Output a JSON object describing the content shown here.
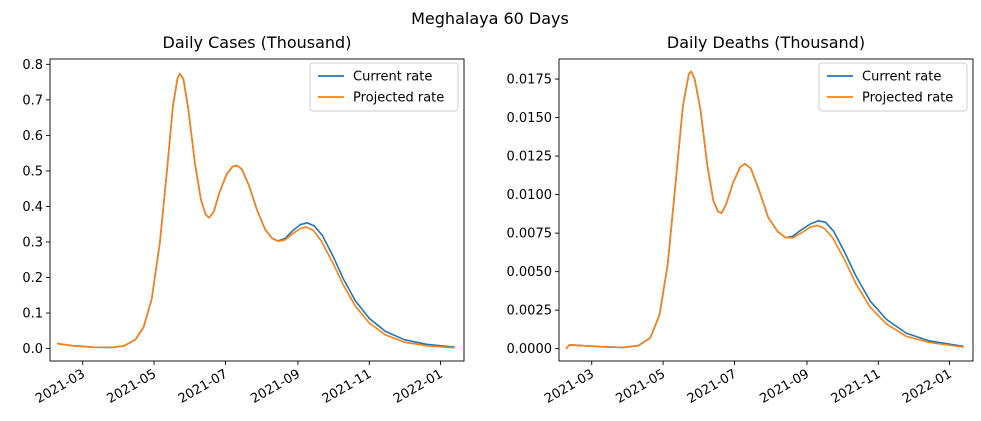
{
  "figure": {
    "suptitle": "Meghalaya 60 Days"
  },
  "colors": {
    "current": "#1f77b4",
    "projected": "#ff7f0e"
  },
  "chart_data": [
    {
      "type": "line",
      "title": "Daily Cases (Thousand)",
      "xlabel": "",
      "ylabel": "",
      "x_range": [
        "2021-02-01",
        "2022-01-21"
      ],
      "ylim": [
        -0.035,
        0.815
      ],
      "y_ticks": [
        0.0,
        0.1,
        0.2,
        0.3,
        0.4,
        0.5,
        0.6,
        0.7,
        0.8
      ],
      "y_tick_labels": [
        "0.0",
        "0.1",
        "0.2",
        "0.3",
        "0.4",
        "0.5",
        "0.6",
        "0.7",
        "0.8"
      ],
      "x_ticks": [
        "2021-03-01",
        "2021-05-01",
        "2021-07-01",
        "2021-09-01",
        "2021-11-01",
        "2022-01-01"
      ],
      "x_tick_labels": [
        "2021-03",
        "2021-05",
        "2021-07",
        "2021-09",
        "2021-11",
        "2022-01"
      ],
      "grid": false,
      "legend": "top-right",
      "series": [
        {
          "name": "Current rate",
          "points": [
            [
              "2021-02-07",
              0.014
            ],
            [
              "2021-02-20",
              0.008
            ],
            [
              "2021-03-10",
              0.004
            ],
            [
              "2021-03-25",
              0.003
            ],
            [
              "2021-04-05",
              0.007
            ],
            [
              "2021-04-15",
              0.025
            ],
            [
              "2021-04-22",
              0.06
            ],
            [
              "2021-04-29",
              0.14
            ],
            [
              "2021-05-06",
              0.3
            ],
            [
              "2021-05-12",
              0.5
            ],
            [
              "2021-05-17",
              0.68
            ],
            [
              "2021-05-21",
              0.76
            ],
            [
              "2021-05-23",
              0.774
            ],
            [
              "2021-05-26",
              0.76
            ],
            [
              "2021-05-30",
              0.68
            ],
            [
              "2021-06-05",
              0.52
            ],
            [
              "2021-06-10",
              0.42
            ],
            [
              "2021-06-14",
              0.378
            ],
            [
              "2021-06-17",
              0.368
            ],
            [
              "2021-06-21",
              0.385
            ],
            [
              "2021-06-26",
              0.44
            ],
            [
              "2021-07-02",
              0.49
            ],
            [
              "2021-07-07",
              0.512
            ],
            [
              "2021-07-11",
              0.515
            ],
            [
              "2021-07-15",
              0.505
            ],
            [
              "2021-07-21",
              0.46
            ],
            [
              "2021-07-28",
              0.39
            ],
            [
              "2021-08-04",
              0.335
            ],
            [
              "2021-08-10",
              0.31
            ],
            [
              "2021-08-15",
              0.303
            ],
            [
              "2021-08-21",
              0.31
            ],
            [
              "2021-08-27",
              0.33
            ],
            [
              "2021-09-03",
              0.349
            ],
            [
              "2021-09-09",
              0.354
            ],
            [
              "2021-09-15",
              0.345
            ],
            [
              "2021-09-22",
              0.318
            ],
            [
              "2021-10-01",
              0.26
            ],
            [
              "2021-10-10",
              0.195
            ],
            [
              "2021-10-20",
              0.135
            ],
            [
              "2021-11-01",
              0.085
            ],
            [
              "2021-11-15",
              0.048
            ],
            [
              "2021-12-01",
              0.025
            ],
            [
              "2021-12-20",
              0.012
            ],
            [
              "2022-01-13",
              0.004
            ]
          ]
        },
        {
          "name": "Projected rate",
          "points": [
            [
              "2021-02-07",
              0.014
            ],
            [
              "2021-02-20",
              0.008
            ],
            [
              "2021-03-10",
              0.004
            ],
            [
              "2021-03-25",
              0.003
            ],
            [
              "2021-04-05",
              0.007
            ],
            [
              "2021-04-15",
              0.025
            ],
            [
              "2021-04-22",
              0.06
            ],
            [
              "2021-04-29",
              0.14
            ],
            [
              "2021-05-06",
              0.3
            ],
            [
              "2021-05-12",
              0.5
            ],
            [
              "2021-05-17",
              0.68
            ],
            [
              "2021-05-21",
              0.76
            ],
            [
              "2021-05-23",
              0.774
            ],
            [
              "2021-05-26",
              0.76
            ],
            [
              "2021-05-30",
              0.68
            ],
            [
              "2021-06-05",
              0.52
            ],
            [
              "2021-06-10",
              0.42
            ],
            [
              "2021-06-14",
              0.378
            ],
            [
              "2021-06-17",
              0.368
            ],
            [
              "2021-06-21",
              0.385
            ],
            [
              "2021-06-26",
              0.44
            ],
            [
              "2021-07-02",
              0.49
            ],
            [
              "2021-07-07",
              0.512
            ],
            [
              "2021-07-11",
              0.515
            ],
            [
              "2021-07-15",
              0.505
            ],
            [
              "2021-07-21",
              0.46
            ],
            [
              "2021-07-28",
              0.39
            ],
            [
              "2021-08-04",
              0.335
            ],
            [
              "2021-08-10",
              0.31
            ],
            [
              "2021-08-15",
              0.302
            ],
            [
              "2021-08-21",
              0.306
            ],
            [
              "2021-08-27",
              0.322
            ],
            [
              "2021-09-03",
              0.338
            ],
            [
              "2021-09-08",
              0.342
            ],
            [
              "2021-09-14",
              0.333
            ],
            [
              "2021-09-21",
              0.303
            ],
            [
              "2021-10-01",
              0.24
            ],
            [
              "2021-10-10",
              0.178
            ],
            [
              "2021-10-20",
              0.12
            ],
            [
              "2021-11-01",
              0.072
            ],
            [
              "2021-11-15",
              0.038
            ],
            [
              "2021-12-01",
              0.018
            ],
            [
              "2021-12-20",
              0.008
            ],
            [
              "2022-01-13",
              0.002
            ]
          ]
        }
      ]
    },
    {
      "type": "line",
      "title": "Daily Deaths (Thousand)",
      "xlabel": "",
      "ylabel": "",
      "x_range": [
        "2021-02-01",
        "2022-01-21"
      ],
      "ylim": [
        -0.0008,
        0.0188
      ],
      "y_ticks": [
        0.0,
        0.0025,
        0.005,
        0.0075,
        0.01,
        0.0125,
        0.015,
        0.0175
      ],
      "y_tick_labels": [
        "0.0000",
        "0.0025",
        "0.0050",
        "0.0075",
        "0.0100",
        "0.0125",
        "0.0150",
        "0.0175"
      ],
      "x_ticks": [
        "2021-03-01",
        "2021-05-01",
        "2021-07-01",
        "2021-09-01",
        "2021-11-01",
        "2022-01-01"
      ],
      "x_tick_labels": [
        "2021-03",
        "2021-05",
        "2021-07",
        "2021-09",
        "2021-11",
        "2022-01"
      ],
      "grid": false,
      "legend": "top-right",
      "series": [
        {
          "name": "Current rate",
          "points": [
            [
              "2021-02-07",
              0.0
            ],
            [
              "2021-02-10",
              0.00025
            ],
            [
              "2021-02-20",
              0.0002
            ],
            [
              "2021-03-10",
              0.00012
            ],
            [
              "2021-03-28",
              8e-05
            ],
            [
              "2021-04-10",
              0.0002
            ],
            [
              "2021-04-20",
              0.0007
            ],
            [
              "2021-04-28",
              0.0022
            ],
            [
              "2021-05-05",
              0.0055
            ],
            [
              "2021-05-12",
              0.011
            ],
            [
              "2021-05-18",
              0.0158
            ],
            [
              "2021-05-23",
              0.0178
            ],
            [
              "2021-05-25",
              0.018
            ],
            [
              "2021-05-28",
              0.0175
            ],
            [
              "2021-06-02",
              0.0155
            ],
            [
              "2021-06-08",
              0.0118
            ],
            [
              "2021-06-13",
              0.0096
            ],
            [
              "2021-06-17",
              0.0089
            ],
            [
              "2021-06-20",
              0.0088
            ],
            [
              "2021-06-24",
              0.0094
            ],
            [
              "2021-06-30",
              0.0108
            ],
            [
              "2021-07-06",
              0.0118
            ],
            [
              "2021-07-10",
              0.012
            ],
            [
              "2021-07-15",
              0.0117
            ],
            [
              "2021-07-22",
              0.0103
            ],
            [
              "2021-07-30",
              0.0085
            ],
            [
              "2021-08-07",
              0.0076
            ],
            [
              "2021-08-14",
              0.0072
            ],
            [
              "2021-08-20",
              0.0073
            ],
            [
              "2021-08-27",
              0.0077
            ],
            [
              "2021-09-04",
              0.0081
            ],
            [
              "2021-09-11",
              0.0083
            ],
            [
              "2021-09-17",
              0.0082
            ],
            [
              "2021-09-24",
              0.0076
            ],
            [
              "2021-10-03",
              0.0063
            ],
            [
              "2021-10-13",
              0.0047
            ],
            [
              "2021-10-25",
              0.0031
            ],
            [
              "2021-11-08",
              0.0019
            ],
            [
              "2021-11-25",
              0.001
            ],
            [
              "2021-12-15",
              0.0005
            ],
            [
              "2022-01-13",
              0.00015
            ]
          ]
        },
        {
          "name": "Projected rate",
          "points": [
            [
              "2021-02-07",
              0.0
            ],
            [
              "2021-02-10",
              0.00025
            ],
            [
              "2021-02-20",
              0.0002
            ],
            [
              "2021-03-10",
              0.00012
            ],
            [
              "2021-03-28",
              8e-05
            ],
            [
              "2021-04-10",
              0.0002
            ],
            [
              "2021-04-20",
              0.0007
            ],
            [
              "2021-04-28",
              0.0022
            ],
            [
              "2021-05-05",
              0.0055
            ],
            [
              "2021-05-12",
              0.011
            ],
            [
              "2021-05-18",
              0.0158
            ],
            [
              "2021-05-23",
              0.0178
            ],
            [
              "2021-05-25",
              0.018
            ],
            [
              "2021-05-28",
              0.0175
            ],
            [
              "2021-06-02",
              0.0155
            ],
            [
              "2021-06-08",
              0.0118
            ],
            [
              "2021-06-13",
              0.0096
            ],
            [
              "2021-06-17",
              0.0089
            ],
            [
              "2021-06-20",
              0.0088
            ],
            [
              "2021-06-24",
              0.0094
            ],
            [
              "2021-06-30",
              0.0108
            ],
            [
              "2021-07-06",
              0.0118
            ],
            [
              "2021-07-10",
              0.012
            ],
            [
              "2021-07-15",
              0.0117
            ],
            [
              "2021-07-22",
              0.0103
            ],
            [
              "2021-07-30",
              0.0085
            ],
            [
              "2021-08-07",
              0.0076
            ],
            [
              "2021-08-14",
              0.0072
            ],
            [
              "2021-08-20",
              0.0072
            ],
            [
              "2021-08-27",
              0.0075
            ],
            [
              "2021-09-04",
              0.0079
            ],
            [
              "2021-09-10",
              0.008
            ],
            [
              "2021-09-16",
              0.0078
            ],
            [
              "2021-09-23",
              0.0072
            ],
            [
              "2021-10-03",
              0.0058
            ],
            [
              "2021-10-13",
              0.0042
            ],
            [
              "2021-10-25",
              0.0027
            ],
            [
              "2021-11-08",
              0.0016
            ],
            [
              "2021-11-25",
              0.0008
            ],
            [
              "2021-12-15",
              0.0004
            ],
            [
              "2022-01-13",
              0.0001
            ]
          ]
        }
      ]
    }
  ]
}
